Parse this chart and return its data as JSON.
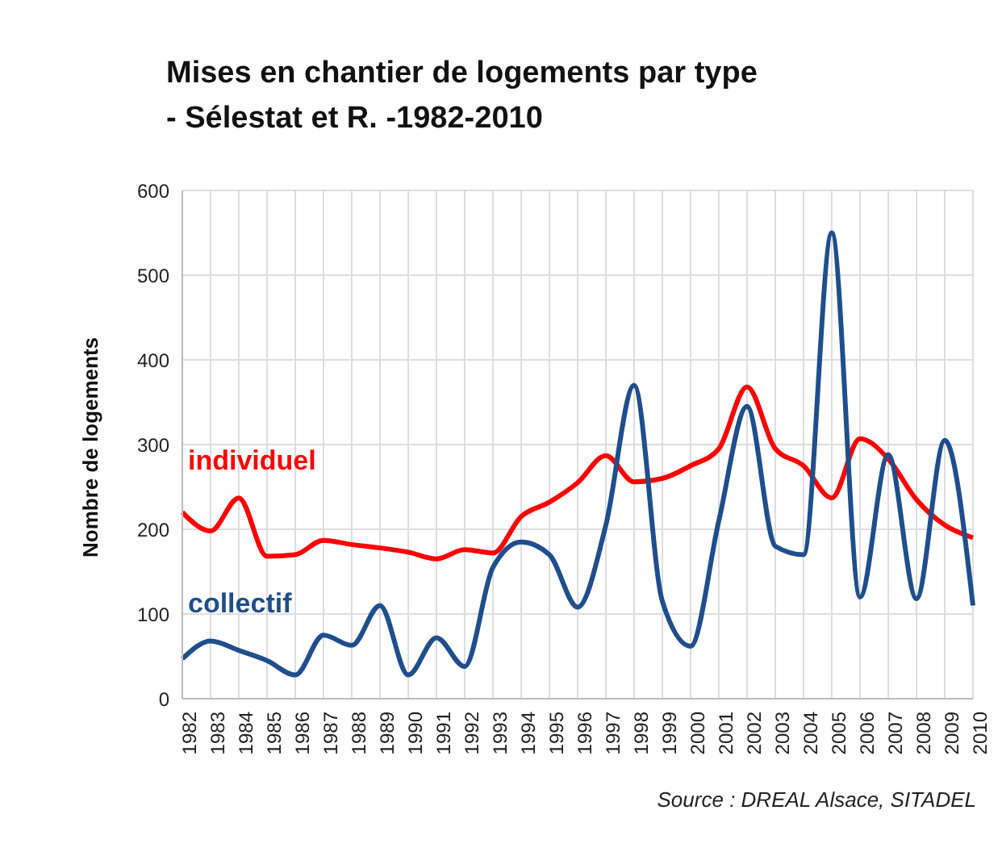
{
  "chart_data": {
    "type": "line",
    "title": "Mises en chantier de logements par type\n- Sélestat et R.  -1982-2010",
    "ylabel": "Nombre de logements",
    "annotations": [
      "Source : DREAL Alsace, SITADEL"
    ],
    "categories": [
      "1982",
      "1983",
      "1984",
      "1985",
      "1986",
      "1987",
      "1988",
      "1989",
      "1990",
      "1991",
      "1992",
      "1993",
      "1994",
      "1995",
      "1996",
      "1997",
      "1998",
      "1999",
      "2000",
      "2001",
      "2002",
      "2003",
      "2004",
      "2005",
      "2006",
      "2007",
      "2008",
      "2009",
      "2010"
    ],
    "series": [
      {
        "name": "individuel",
        "color": "#ff0000",
        "values": [
          220,
          198,
          237,
          168,
          170,
          187,
          182,
          178,
          173,
          165,
          176,
          172,
          215,
          232,
          255,
          287,
          256,
          260,
          275,
          295,
          368,
          295,
          275,
          237,
          307,
          283,
          235,
          205,
          190
        ]
      },
      {
        "name": "collectif",
        "color": "#1f4e8c",
        "values": [
          47,
          68,
          57,
          45,
          28,
          75,
          63,
          110,
          28,
          72,
          38,
          155,
          185,
          170,
          108,
          205,
          370,
          115,
          62,
          210,
          345,
          180,
          170,
          550,
          120,
          288,
          118,
          305,
          110
        ]
      }
    ],
    "ylim": [
      0,
      600
    ],
    "yticks": [
      0,
      100,
      200,
      300,
      400,
      500,
      600
    ],
    "grid": true,
    "marker": "none",
    "line_style": "solid"
  }
}
